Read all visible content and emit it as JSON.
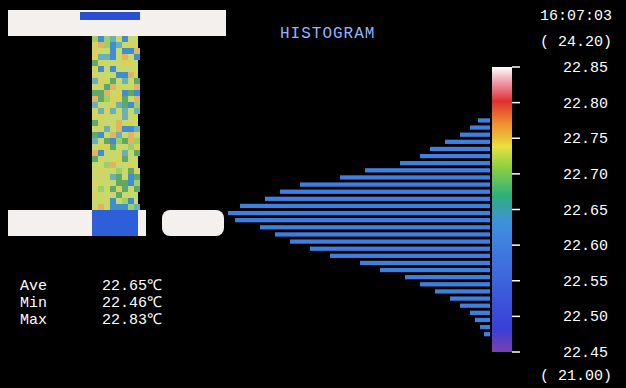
{
  "chart_data": {
    "type": "histogram",
    "title": "HISTOGRAM",
    "orientation": "horizontal",
    "bins": [
      22.47,
      22.48,
      22.49,
      22.5,
      22.51,
      22.52,
      22.53,
      22.54,
      22.55,
      22.56,
      22.57,
      22.58,
      22.59,
      22.6,
      22.61,
      22.62,
      22.63,
      22.64,
      22.65,
      22.66,
      22.67,
      22.68,
      22.69,
      22.7,
      22.71,
      22.72,
      22.73,
      22.74,
      22.75,
      22.76,
      22.77,
      22.78
    ],
    "counts": [
      6,
      10,
      15,
      20,
      30,
      40,
      55,
      70,
      85,
      110,
      130,
      160,
      180,
      200,
      215,
      230,
      255,
      262,
      250,
      225,
      210,
      190,
      150,
      125,
      90,
      70,
      60,
      45,
      30,
      20,
      12
    ],
    "color": "#3f7fe0",
    "xlim": [
      0,
      270
    ],
    "ylim": [
      22.45,
      22.85
    ],
    "yticks": [
      {
        "value": 22.45,
        "label": "22.45"
      },
      {
        "value": 22.5,
        "label": "22.50"
      },
      {
        "value": 22.55,
        "label": "22.55"
      },
      {
        "value": 22.6,
        "label": "22.60"
      },
      {
        "value": 22.65,
        "label": "22.65"
      },
      {
        "value": 22.7,
        "label": "22.70"
      },
      {
        "value": 22.75,
        "label": "22.75"
      },
      {
        "value": 22.8,
        "label": "22.80"
      },
      {
        "value": 22.85,
        "label": "22.85"
      }
    ],
    "tick_labels": "y",
    "grid": false
  },
  "header": {
    "time": "16:07:03",
    "range_max": "( 24.20)",
    "range_min": "( 21.00)"
  },
  "stats": [
    {
      "label": "Ave",
      "text": "22.65℃"
    },
    {
      "label": "Min",
      "text": "22.46℃"
    },
    {
      "label": "Max",
      "text": "22.83℃"
    }
  ]
}
